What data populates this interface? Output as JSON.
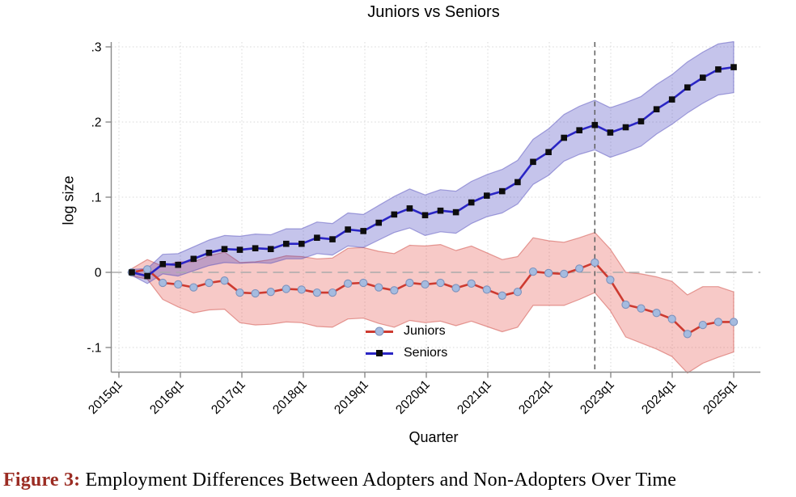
{
  "figure": {
    "caption_label": "Figure 3:",
    "caption_text": " Employment Differences Between Adopters and Non-Adopters Over Time",
    "caption_label_color": "#9b2c23"
  },
  "chart_data": {
    "type": "line",
    "title": "Juniors vs Seniors",
    "xlabel": "Quarter",
    "ylabel": "log size",
    "ylim": [
      -0.132,
      0.306
    ],
    "grid": true,
    "zero_line": true,
    "vline_quarter": "2022q4",
    "legend_position": "inside-bottom-center",
    "y_ticks": [
      0.3,
      0.2,
      0.1,
      0,
      -0.1
    ],
    "y_tick_labels": [
      ".3",
      ".2",
      ".1",
      "0",
      "-.1"
    ],
    "x_tick_labels": [
      "2015q1",
      "2016q1",
      "2017q1",
      "2018q1",
      "2019q1",
      "2020q1",
      "2021q1",
      "2022q1",
      "2023q1",
      "2024q1",
      "2025q1"
    ],
    "quarters": [
      "2015q2",
      "2015q3",
      "2015q4",
      "2016q1",
      "2016q2",
      "2016q3",
      "2016q4",
      "2017q1",
      "2017q2",
      "2017q3",
      "2017q4",
      "2018q1",
      "2018q2",
      "2018q3",
      "2018q4",
      "2019q1",
      "2019q2",
      "2019q3",
      "2019q4",
      "2020q1",
      "2020q2",
      "2020q3",
      "2020q4",
      "2021q1",
      "2021q2",
      "2021q3",
      "2021q4",
      "2022q1",
      "2022q2",
      "2022q3",
      "2022q4",
      "2023q1",
      "2023q2",
      "2023q3",
      "2023q4",
      "2024q1",
      "2024q2",
      "2024q3",
      "2024q4",
      "2025q1"
    ],
    "series": [
      {
        "name": "Juniors",
        "color": "#cd3a30",
        "marker": "circle",
        "marker_fill": "#a5bbdf",
        "marker_edge": "#7d92bd",
        "band_fill": "rgba(225,60,55,0.28)",
        "band_edge": "rgba(205,70,62,0.5)",
        "values": [
          0.0,
          0.004,
          -0.014,
          -0.016,
          -0.02,
          -0.014,
          -0.011,
          -0.027,
          -0.028,
          -0.026,
          -0.022,
          -0.023,
          -0.027,
          -0.027,
          -0.015,
          -0.014,
          -0.02,
          -0.024,
          -0.014,
          -0.016,
          -0.014,
          -0.021,
          -0.015,
          -0.023,
          -0.031,
          -0.026,
          0.001,
          -0.001,
          -0.002,
          0.005,
          0.013,
          -0.01,
          -0.043,
          -0.048,
          -0.054,
          -0.062,
          -0.082,
          -0.07,
          -0.066,
          -0.066
        ],
        "ci_upper": [
          0.005,
          0.017,
          0.008,
          0.014,
          0.014,
          0.022,
          0.027,
          0.013,
          0.014,
          0.017,
          0.022,
          0.021,
          0.018,
          0.019,
          0.032,
          0.033,
          0.028,
          0.025,
          0.036,
          0.035,
          0.037,
          0.029,
          0.035,
          0.026,
          0.017,
          0.021,
          0.046,
          0.042,
          0.04,
          0.046,
          0.053,
          0.031,
          0.0,
          -0.002,
          -0.006,
          -0.012,
          -0.03,
          -0.019,
          -0.019,
          -0.026
        ],
        "ci_lower": [
          -0.005,
          -0.009,
          -0.036,
          -0.046,
          -0.054,
          -0.05,
          -0.049,
          -0.067,
          -0.07,
          -0.069,
          -0.066,
          -0.067,
          -0.072,
          -0.073,
          -0.062,
          -0.061,
          -0.068,
          -0.073,
          -0.064,
          -0.067,
          -0.065,
          -0.071,
          -0.065,
          -0.072,
          -0.079,
          -0.073,
          -0.044,
          -0.044,
          -0.044,
          -0.036,
          -0.027,
          -0.051,
          -0.086,
          -0.094,
          -0.102,
          -0.112,
          -0.134,
          -0.121,
          -0.113,
          -0.106
        ]
      },
      {
        "name": "Seniors",
        "color": "#2a25c4",
        "marker": "square",
        "marker_fill": "#0d0d0d",
        "marker_edge": "#0d0d0d",
        "band_fill": "rgba(62,58,190,0.30)",
        "band_edge": "rgba(85,80,190,0.5)",
        "values": [
          0.0,
          -0.005,
          0.011,
          0.01,
          0.018,
          0.026,
          0.031,
          0.03,
          0.032,
          0.031,
          0.038,
          0.038,
          0.046,
          0.044,
          0.057,
          0.055,
          0.066,
          0.077,
          0.085,
          0.076,
          0.082,
          0.08,
          0.093,
          0.102,
          0.108,
          0.12,
          0.147,
          0.16,
          0.179,
          0.189,
          0.196,
          0.186,
          0.193,
          0.201,
          0.217,
          0.23,
          0.246,
          0.259,
          0.27,
          0.273
        ],
        "ci_upper": [
          0.004,
          0.005,
          0.024,
          0.025,
          0.034,
          0.043,
          0.049,
          0.048,
          0.051,
          0.05,
          0.058,
          0.058,
          0.067,
          0.065,
          0.079,
          0.077,
          0.089,
          0.101,
          0.111,
          0.103,
          0.11,
          0.108,
          0.121,
          0.13,
          0.137,
          0.149,
          0.177,
          0.191,
          0.21,
          0.221,
          0.229,
          0.219,
          0.226,
          0.234,
          0.25,
          0.263,
          0.28,
          0.293,
          0.304,
          0.307
        ],
        "ci_lower": [
          -0.004,
          -0.015,
          -0.002,
          -0.005,
          0.002,
          0.009,
          0.013,
          0.012,
          0.013,
          0.012,
          0.018,
          0.018,
          0.025,
          0.023,
          0.035,
          0.033,
          0.043,
          0.053,
          0.059,
          0.049,
          0.054,
          0.052,
          0.065,
          0.074,
          0.079,
          0.091,
          0.117,
          0.129,
          0.148,
          0.157,
          0.163,
          0.153,
          0.16,
          0.168,
          0.184,
          0.197,
          0.212,
          0.225,
          0.236,
          0.239
        ]
      }
    ]
  }
}
